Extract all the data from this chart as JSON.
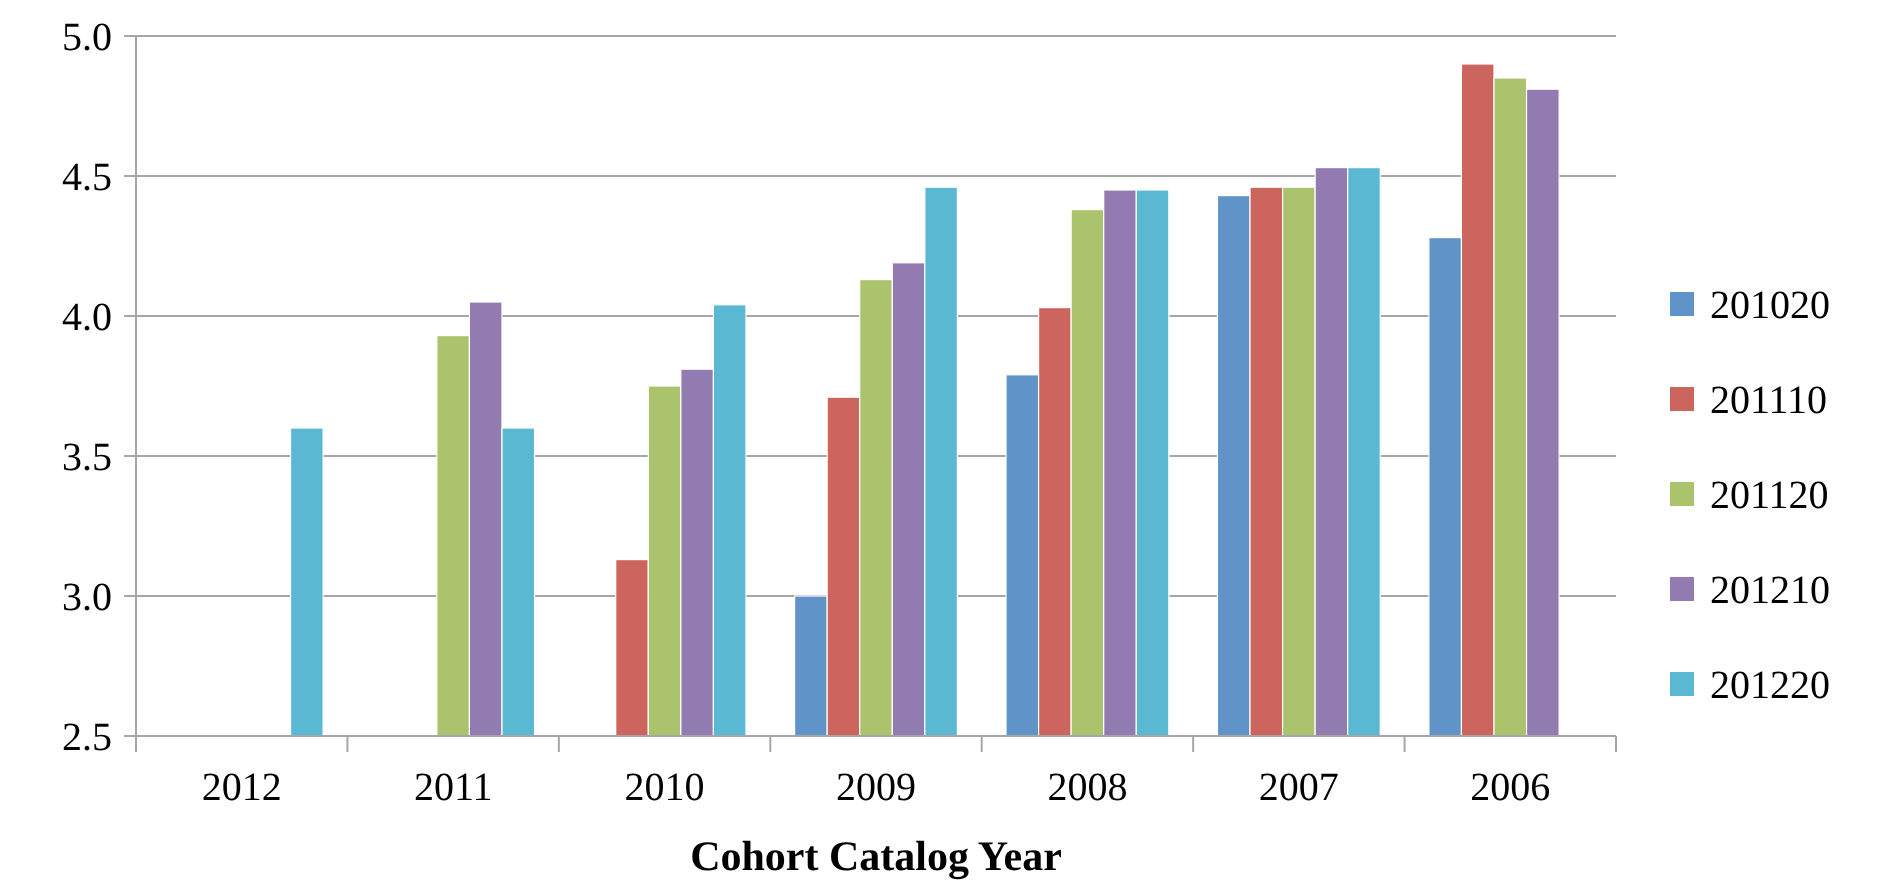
{
  "chart_data": {
    "type": "bar",
    "xlabel": "Cohort Catalog Year",
    "categories": [
      "2012",
      "2011",
      "2010",
      "2009",
      "2008",
      "2007",
      "2006"
    ],
    "series": [
      {
        "name": "201020",
        "color": "#6094c8",
        "values": [
          null,
          null,
          null,
          3.0,
          3.79,
          4.43,
          4.28
        ]
      },
      {
        "name": "201110",
        "color": "#cd655f",
        "values": [
          null,
          null,
          3.13,
          3.71,
          4.03,
          4.46,
          4.9
        ]
      },
      {
        "name": "201120",
        "color": "#aac36c",
        "values": [
          null,
          3.93,
          3.75,
          4.13,
          4.38,
          4.46,
          4.85
        ]
      },
      {
        "name": "201210",
        "color": "#927bb0",
        "values": [
          null,
          4.05,
          3.81,
          4.19,
          4.45,
          4.53,
          4.81
        ]
      },
      {
        "name": "201220",
        "color": "#5bb8d2",
        "values": [
          3.6,
          3.6,
          4.04,
          4.46,
          4.45,
          4.53,
          null
        ]
      }
    ],
    "ylim": [
      2.5,
      5.0
    ],
    "yticks": [
      {
        "value": 2.5,
        "label": "2.5"
      },
      {
        "value": 3.0,
        "label": "3.0"
      },
      {
        "value": 3.5,
        "label": "3.5"
      },
      {
        "value": 4.0,
        "label": "4.0"
      },
      {
        "value": 4.5,
        "label": "4.5"
      },
      {
        "value": 5.0,
        "label": "5.0"
      }
    ],
    "grid": "y",
    "legend": "right"
  }
}
